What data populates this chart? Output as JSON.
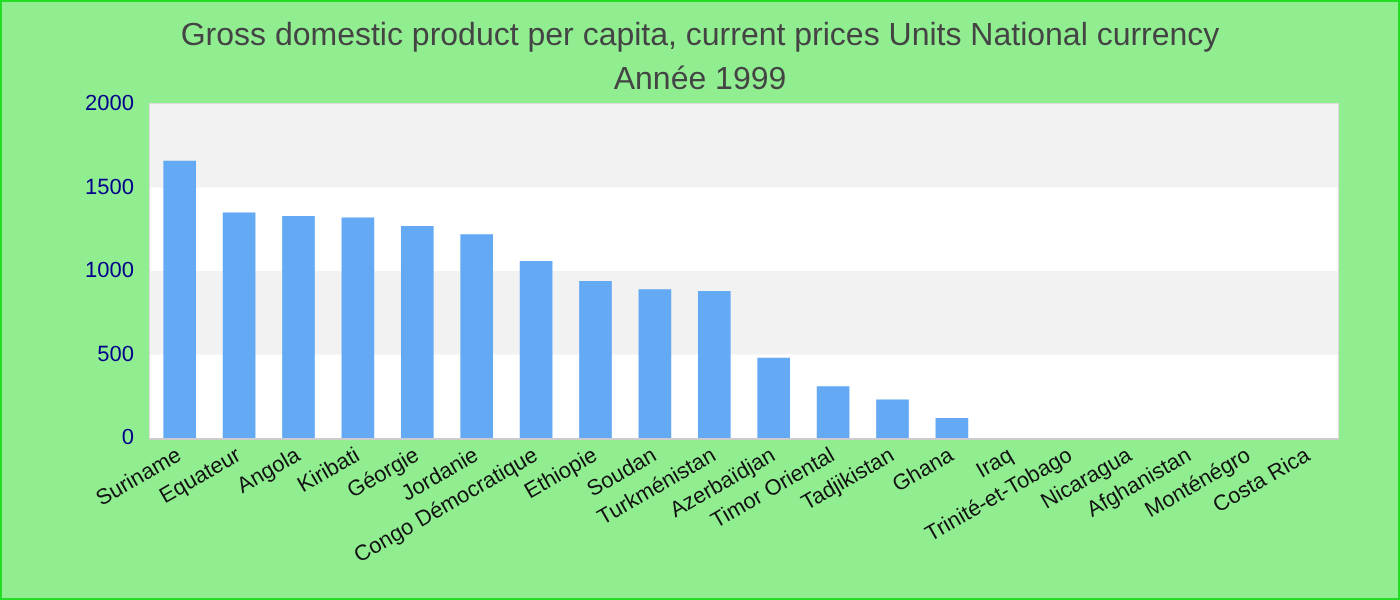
{
  "chart_data": {
    "type": "bar",
    "title": "Gross domestic product per capita, current prices Units National currency",
    "subtitle": "Année 1999",
    "categories": [
      "Suriname",
      "Equateur",
      "Angola",
      "Kiribati",
      "Géorgie",
      "Jordanie",
      "Congo Démocratique",
      "Ethiopie",
      "Soudan",
      "Turkménistan",
      "Azerbaïdjan",
      "Timor Oriental",
      "Tadjikistan",
      "Ghana",
      "Iraq",
      "Trinité-et-Tobago",
      "Nicaragua",
      "Afghanistan",
      "Monténégro",
      "Costa Rica"
    ],
    "values": [
      1660,
      1350,
      1330,
      1320,
      1270,
      1220,
      1060,
      940,
      890,
      880,
      480,
      310,
      230,
      120,
      null,
      null,
      null,
      null,
      null,
      null
    ],
    "color": "#63a9f4",
    "ylim": [
      0,
      2000
    ],
    "yticks": [
      0,
      500,
      1000,
      1500,
      2000
    ]
  }
}
